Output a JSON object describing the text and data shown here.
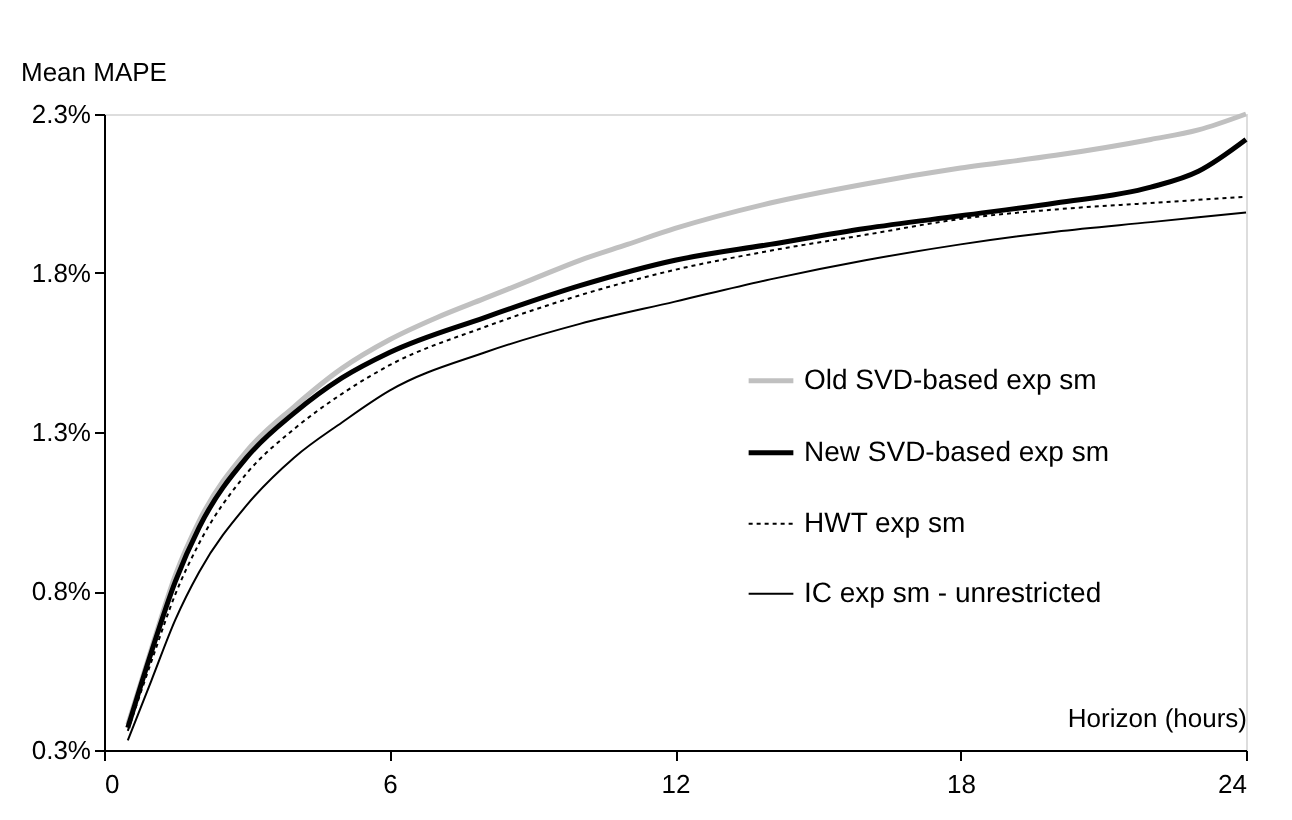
{
  "chart_data": {
    "type": "line",
    "xlabel": "Horizon (hours)",
    "ylabel": "Mean MAPE",
    "xlim": [
      0,
      24
    ],
    "xticks": [
      0,
      6,
      12,
      18,
      24
    ],
    "ylim": [
      0.3,
      2.3
    ],
    "yticks": [
      {
        "value": 0.3,
        "label": "0.3%"
      },
      {
        "value": 0.8,
        "label": "0.8%"
      },
      {
        "value": 1.3,
        "label": "1.3%"
      },
      {
        "value": 1.8,
        "label": "1.8%"
      },
      {
        "value": 2.3,
        "label": "2.3%"
      }
    ],
    "grid": false,
    "legend": "right",
    "marker": "none",
    "series": [
      {
        "name": "Old SVD-based exp sm",
        "color": "#c0c0c0",
        "line_style": "solid",
        "x": [
          0.5,
          1,
          1.5,
          2,
          3,
          4,
          5,
          6,
          7,
          8,
          9,
          10,
          11,
          12,
          14,
          16,
          18,
          20,
          22,
          23,
          24
        ],
        "values": [
          0.38,
          0.62,
          0.85,
          1.02,
          1.24,
          1.38,
          1.5,
          1.59,
          1.66,
          1.72,
          1.78,
          1.84,
          1.89,
          1.94,
          2.02,
          2.08,
          2.13,
          2.17,
          2.22,
          2.25,
          2.3
        ]
      },
      {
        "name": "New SVD-based exp sm",
        "color": "#000000",
        "line_style": "solid",
        "x": [
          0.5,
          1,
          1.5,
          2,
          3,
          4,
          5,
          6,
          8,
          10,
          12,
          14,
          16,
          18,
          20,
          22,
          23,
          24
        ],
        "values": [
          0.37,
          0.61,
          0.83,
          1.0,
          1.22,
          1.36,
          1.47,
          1.55,
          1.66,
          1.76,
          1.84,
          1.89,
          1.94,
          1.98,
          2.02,
          2.07,
          2.12,
          2.22
        ]
      },
      {
        "name": "HWT exp sm",
        "color": "#000000",
        "line_style": "dotted",
        "x": [
          0.5,
          1,
          1.5,
          2,
          3,
          4,
          5,
          6,
          8,
          10,
          12,
          14,
          16,
          18,
          20,
          22,
          24
        ],
        "values": [
          0.36,
          0.58,
          0.79,
          0.95,
          1.17,
          1.31,
          1.42,
          1.51,
          1.63,
          1.73,
          1.81,
          1.87,
          1.92,
          1.97,
          2.0,
          2.02,
          2.04
        ]
      },
      {
        "name": "IC exp sm - unrestricted",
        "color": "#000000",
        "line_style": "solid",
        "x": [
          0.5,
          1,
          1.5,
          2,
          3,
          4,
          5,
          6,
          8,
          10,
          12,
          14,
          16,
          18,
          20,
          22,
          24
        ],
        "values": [
          0.33,
          0.52,
          0.71,
          0.86,
          1.07,
          1.22,
          1.33,
          1.43,
          1.55,
          1.64,
          1.71,
          1.78,
          1.84,
          1.89,
          1.93,
          1.96,
          1.99
        ]
      }
    ]
  }
}
